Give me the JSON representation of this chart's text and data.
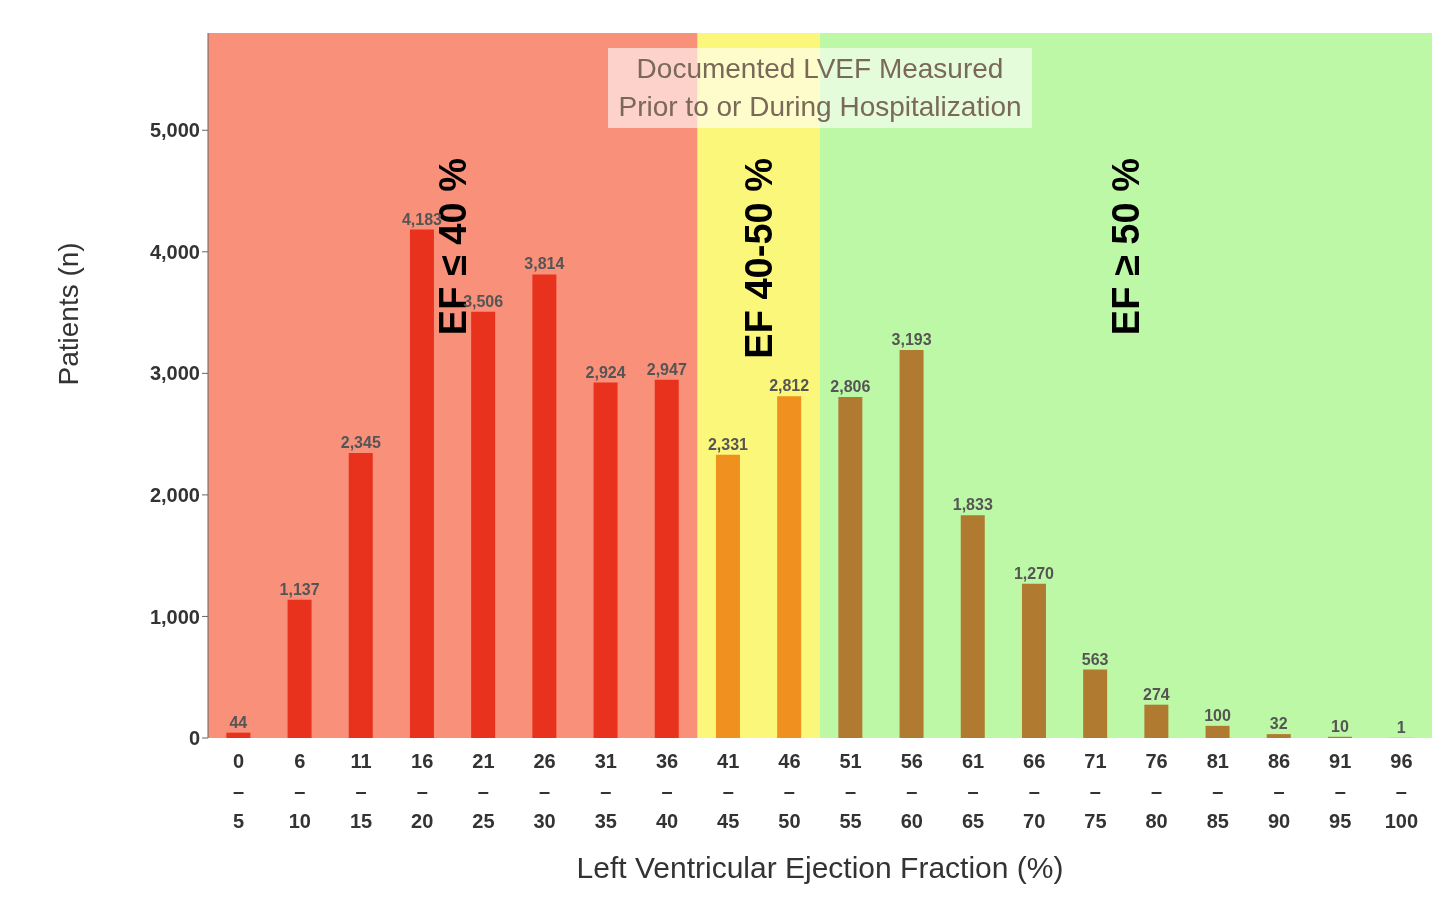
{
  "chart_data": {
    "type": "bar",
    "title": "Documented LVEF Measured\nPrior to or During Hospitalization",
    "xlabel": "Left Ventricular Ejection Fraction (%)",
    "ylabel": "Patients (n)",
    "categories": [
      "0–5",
      "6–10",
      "11–15",
      "16–20",
      "21–25",
      "26–30",
      "31–35",
      "36–40",
      "41–45",
      "46–50",
      "51–55",
      "56–60",
      "61–65",
      "66–70",
      "71–75",
      "76–80",
      "81–85",
      "86–90",
      "91–95",
      "96–100"
    ],
    "values": [
      44,
      1137,
      2345,
      4183,
      3506,
      3814,
      2924,
      2947,
      2331,
      2812,
      2806,
      3193,
      1833,
      1270,
      563,
      274,
      100,
      32,
      10,
      1
    ],
    "value_labels": [
      "44",
      "1,137",
      "2,345",
      "4,183",
      "3,506",
      "3,814",
      "2,924",
      "2,947",
      "2,331",
      "2,812",
      "2,806",
      "3,193",
      "1,833",
      "1,270",
      "563",
      "274",
      "100",
      "32",
      "10",
      "1"
    ],
    "colors": [
      "#e8321e",
      "#e8321e",
      "#e8321e",
      "#e8321e",
      "#e8321e",
      "#e8321e",
      "#e8321e",
      "#e8321e",
      "#f0901e",
      "#f0901e",
      "#b07a30",
      "#b07a30",
      "#b07a30",
      "#b07a30",
      "#b07a30",
      "#b07a30",
      "#b07a30",
      "#b07a30",
      "#b07a30",
      "#b07a30"
    ],
    "ylim": [
      0,
      5800
    ],
    "yticks": [
      {
        "value": 0,
        "label": "0"
      },
      {
        "value": 1000,
        "label": "1,000"
      },
      {
        "value": 2000,
        "label": "2,000"
      },
      {
        "value": 3000,
        "label": "3,000"
      },
      {
        "value": 4000,
        "label": "4,000"
      },
      {
        "value": 5000,
        "label": "5,000"
      }
    ],
    "bands": [
      {
        "axis": "x",
        "from": "0–5",
        "to": "36–40",
        "label": "EF ≤ 40 %",
        "color": "#f8907a"
      },
      {
        "axis": "x",
        "from": "41–45",
        "to": "46–50",
        "label": "EF 40-50 %",
        "color": "#fbf77a"
      },
      {
        "axis": "x",
        "from": "51–55",
        "to": "96–100",
        "label": "EF ≥ 50 %",
        "color": "#bdf8a6"
      }
    ]
  }
}
